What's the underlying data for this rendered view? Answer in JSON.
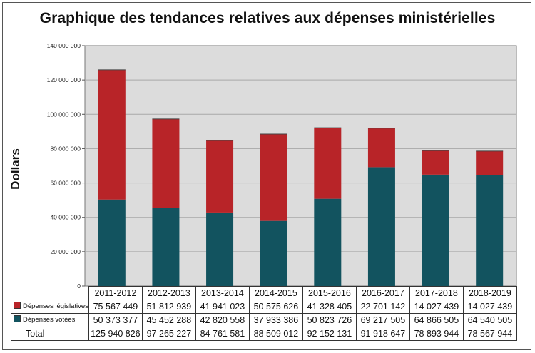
{
  "title": "Graphique des tendances relatives aux dépenses ministérielles",
  "colors": {
    "legislative": "#b82428",
    "voted": "#12535f",
    "plot_bg": "#dcdcdc",
    "grid": "#a8a8a8"
  },
  "chart_data": {
    "type": "bar",
    "stacked": true,
    "title": "Graphique des tendances relatives aux dépenses ministérielles",
    "xlabel": "",
    "ylabel": "Dollars",
    "ylim": [
      0,
      140000000
    ],
    "yticks": [
      "0",
      "20 000 000",
      "40 000 000",
      "60 000 000",
      "80 000 000",
      "100 000 000",
      "120 000 000",
      "140 000 000"
    ],
    "grid": true,
    "categories": [
      "2011-2012",
      "2012-2013",
      "2013-2014",
      "2014-2015",
      "2015-2016",
      "2016-2017",
      "2017-2018",
      "2018-2019"
    ],
    "series": [
      {
        "name": "Dépenses votées",
        "values": [
          50373377,
          45452288,
          42820558,
          37933386,
          50823726,
          69217505,
          64866505,
          64540505
        ]
      },
      {
        "name": "Dépenses législatives",
        "values": [
          75567449,
          51812939,
          41941023,
          50575626,
          41328405,
          22701142,
          14027439,
          14027439
        ]
      }
    ],
    "totals": [
      125940826,
      97265227,
      84761581,
      88509012,
      92152131,
      91918647,
      78893944,
      78567944
    ]
  },
  "table": {
    "row_legislative_label": "Dépenses législatives",
    "row_voted_label": "Dépenses votées",
    "row_total_label": "Total",
    "legislative": [
      "75 567 449",
      "51 812 939",
      "41 941 023",
      "50 575 626",
      "41 328 405",
      "22 701 142",
      "14 027 439",
      "14 027 439"
    ],
    "voted": [
      "50 373 377",
      "45 452 288",
      "42 820 558",
      "37 933 386",
      "50 823 726",
      "69 217 505",
      "64 866 505",
      "64 540 505"
    ],
    "total": [
      "125 940 826",
      "97 265 227",
      "84 761 581",
      "88 509 012",
      "92 152 131",
      "91 918 647",
      "78 893 944",
      "78 567 944"
    ]
  }
}
